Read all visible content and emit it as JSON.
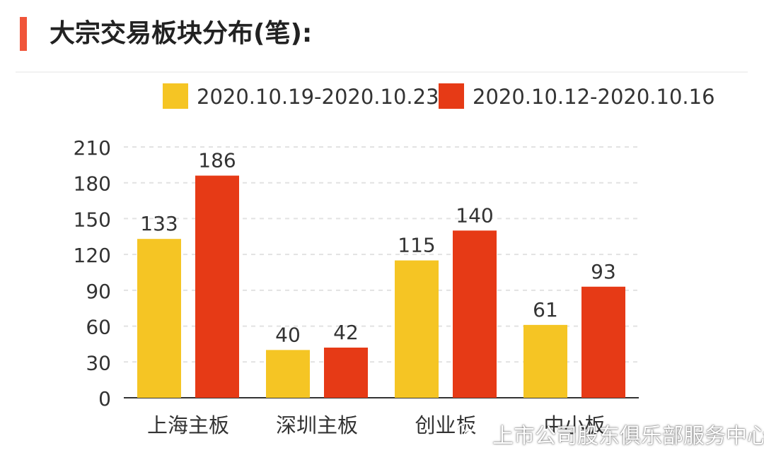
{
  "header": {
    "title": "大宗交易板块分布(笔):"
  },
  "watermark": {
    "text": "上市公司股东俱乐部服务中心",
    "icon": "wechat-icon"
  },
  "colors": {
    "accent": "#f0553a",
    "series_a": "#f5c524",
    "series_b": "#e63a16",
    "grid": "#e2e2e2",
    "axis": "#333333",
    "text": "#333333"
  },
  "chart_data": {
    "type": "bar",
    "title": "大宗交易板块分布(笔):",
    "categories": [
      "上海主板",
      "深圳主板",
      "创业板",
      "中小板"
    ],
    "series": [
      {
        "name": "2020.10.19-2020.10.23",
        "values": [
          133,
          40,
          115,
          61
        ],
        "color": "#f5c524"
      },
      {
        "name": "2020.10.12-2020.10.16",
        "values": [
          186,
          42,
          140,
          93
        ],
        "color": "#e63a16"
      }
    ],
    "ylim": [
      0,
      210
    ],
    "yticks": [
      0,
      30,
      60,
      90,
      120,
      150,
      180,
      210
    ],
    "grid": true,
    "legend": "top",
    "xlabel": "",
    "ylabel": ""
  }
}
